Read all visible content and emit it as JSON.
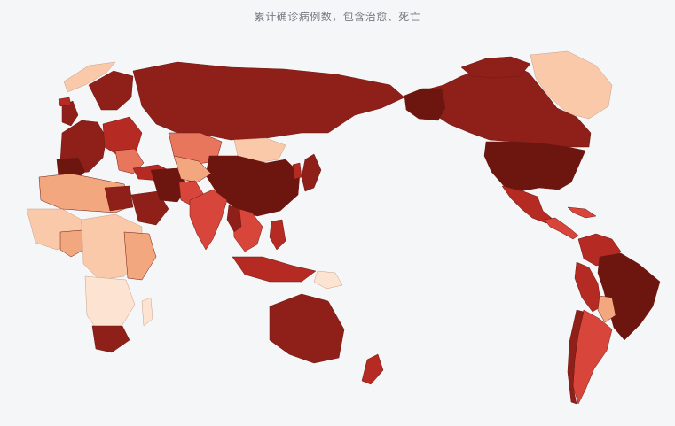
{
  "title": "累计确诊病例数，包含治愈、死亡",
  "colors": {
    "background": "#f4f6f8",
    "level_1": "#fde3d1",
    "level_2": "#f9c9a9",
    "level_3": "#f2a77f",
    "level_4": "#e8765c",
    "level_5": "#d8453a",
    "level_6": "#b52a22",
    "level_7": "#8e1f19",
    "level_8": "#6d1610"
  },
  "legend_levels": [
    "level_1",
    "level_2",
    "level_3",
    "level_4",
    "level_5",
    "level_6",
    "level_7",
    "level_8"
  ]
}
